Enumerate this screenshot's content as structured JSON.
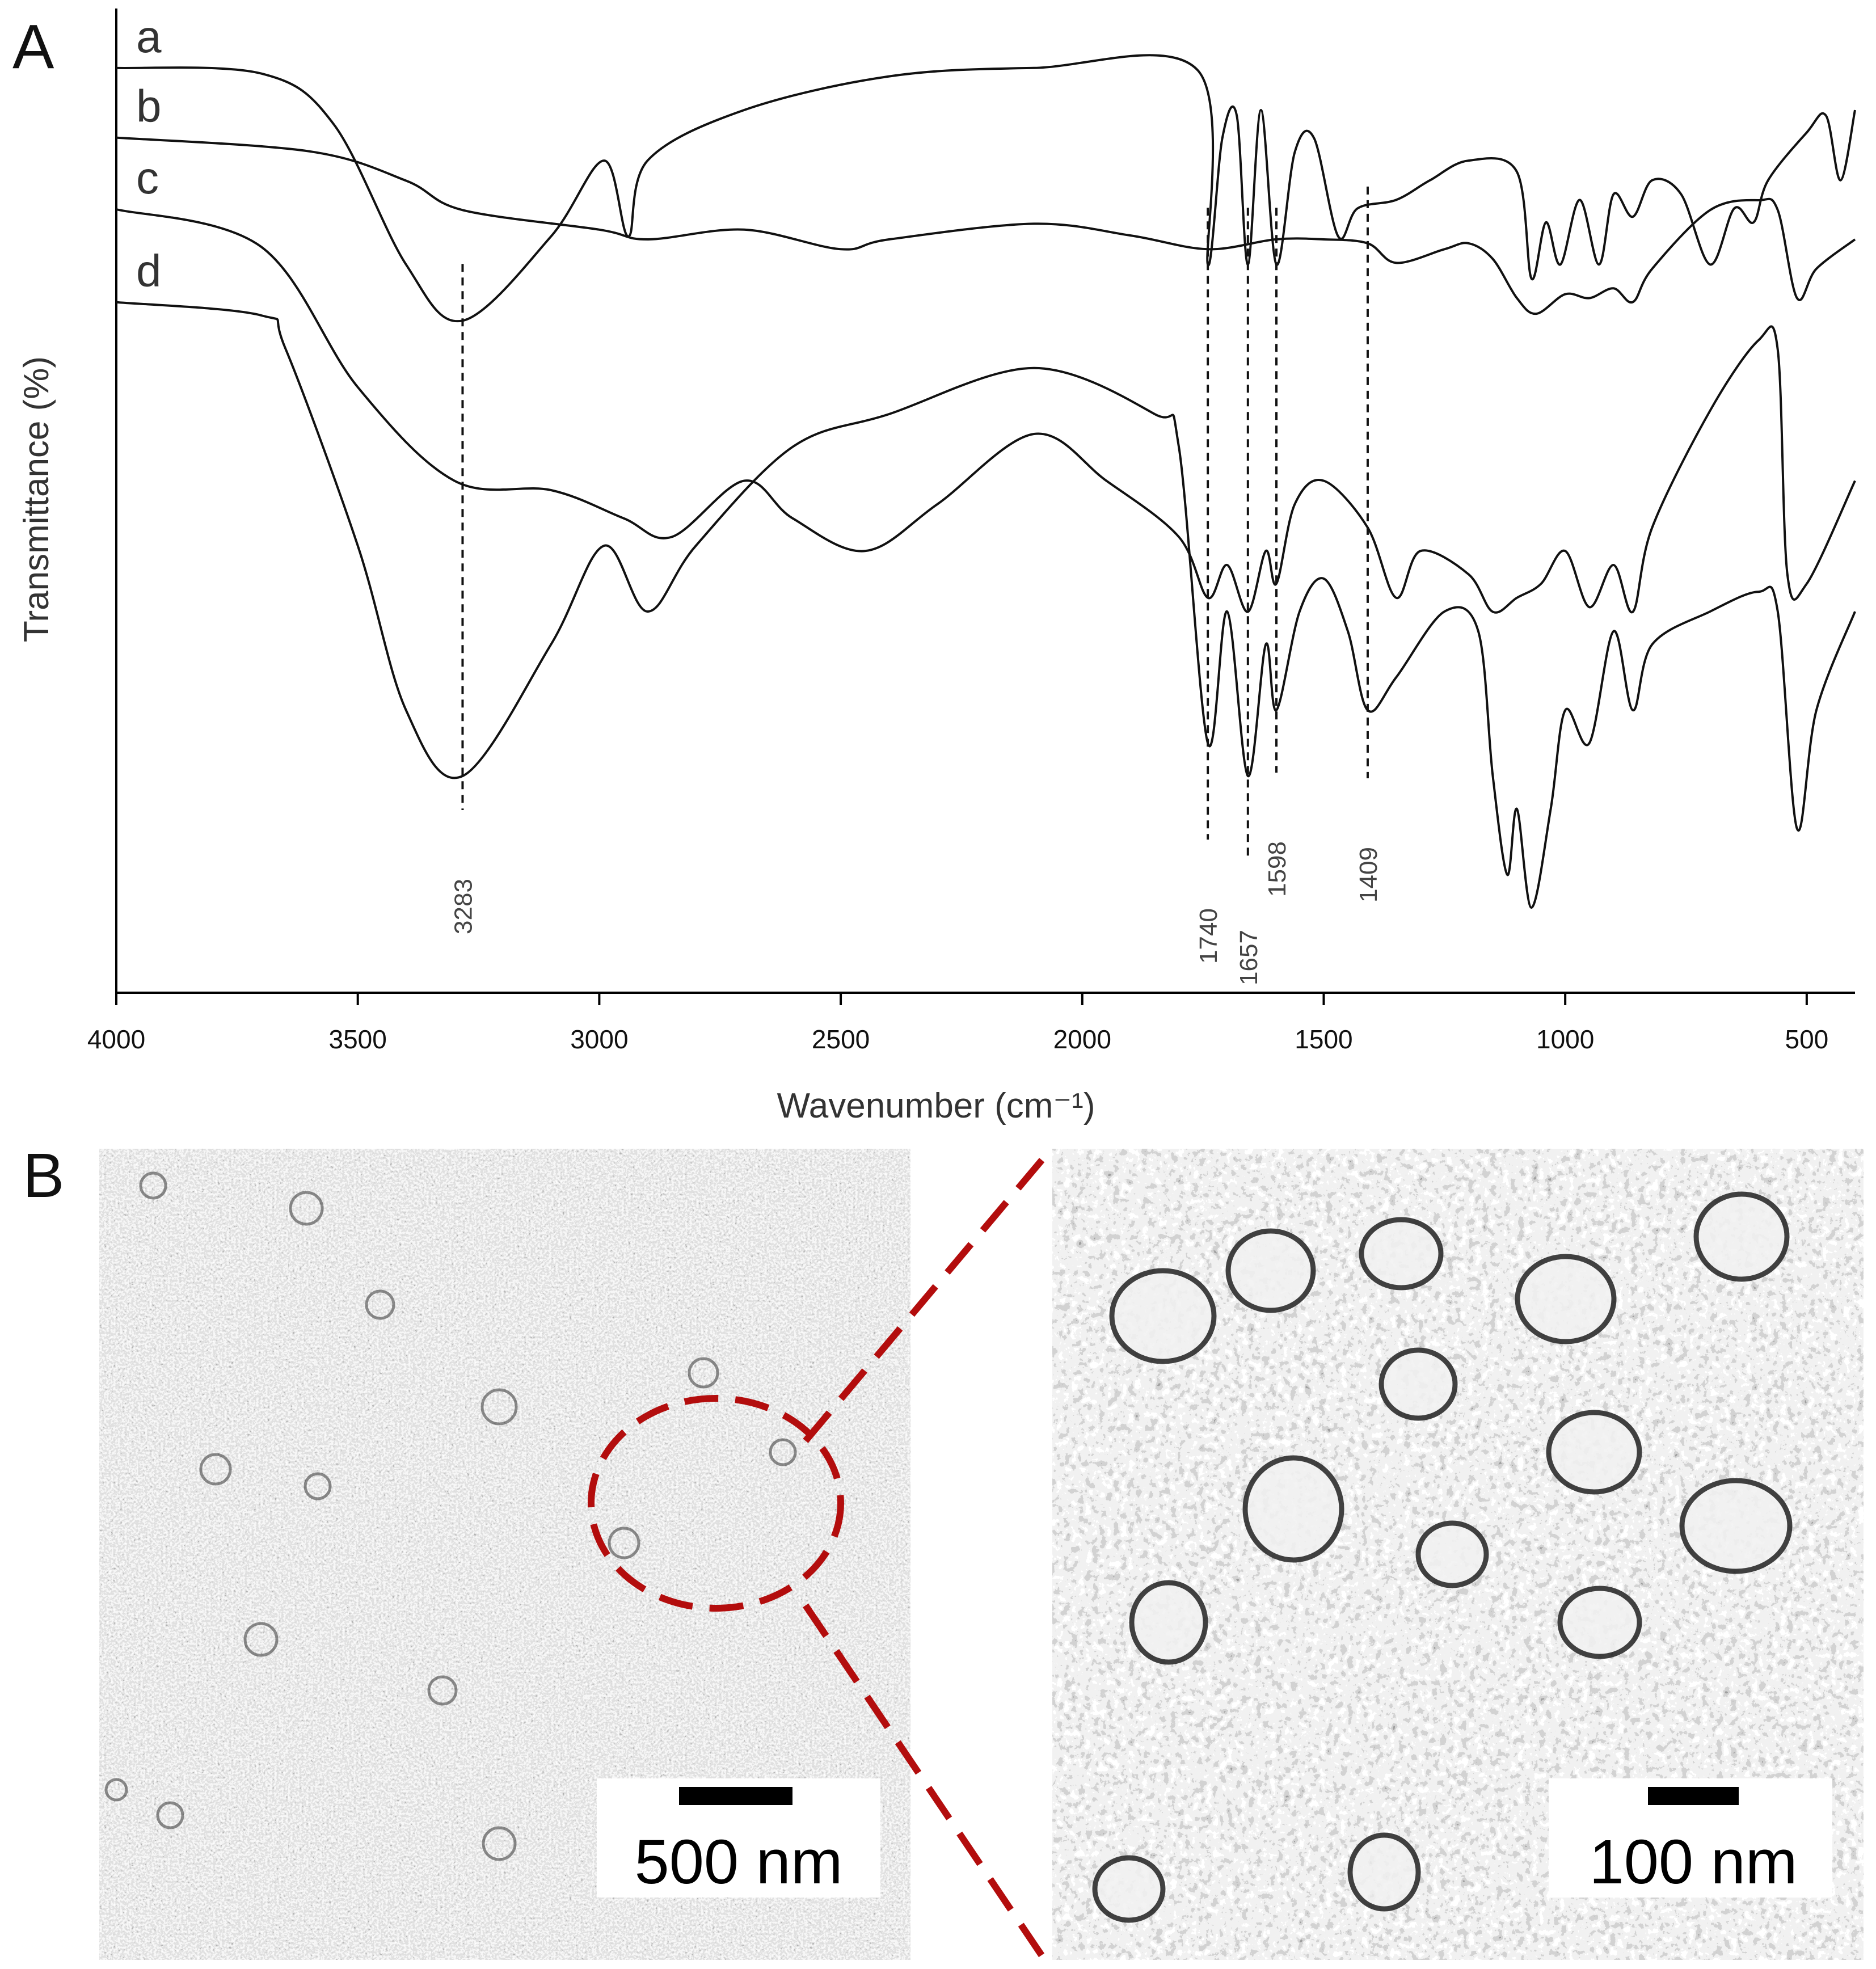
{
  "figure": {
    "panel_a": {
      "letter": "A"
    },
    "panel_b": {
      "letter": "B",
      "scale_bar_left": "500 nm",
      "scale_bar_right": "100 nm",
      "zoom_color": "#b30d0d"
    }
  },
  "chart_data": {
    "type": "line",
    "xlabel": "Wavenumber (cm⁻¹)",
    "ylabel": "Transmittance (%)",
    "xlim": [
      4000,
      400
    ],
    "x_reversed": true,
    "xticks": [
      4000,
      3500,
      3000,
      2500,
      2000,
      1500,
      1000,
      500
    ],
    "y_ticks_shown": false,
    "grid": false,
    "series": [
      {
        "name": "a",
        "points": [
          [
            4000,
            0.95
          ],
          [
            3700,
            0.93
          ],
          [
            3550,
            0.75
          ],
          [
            3400,
            0.25
          ],
          [
            3283,
            0.05
          ],
          [
            3100,
            0.35
          ],
          [
            2990,
            0.62
          ],
          [
            2940,
            0.35
          ],
          [
            2900,
            0.62
          ],
          [
            2700,
            0.8
          ],
          [
            2400,
            0.92
          ],
          [
            2100,
            0.95
          ],
          [
            1760,
            0.94
          ],
          [
            1740,
            0.25
          ],
          [
            1710,
            0.7
          ],
          [
            1680,
            0.78
          ],
          [
            1657,
            0.25
          ],
          [
            1630,
            0.8
          ],
          [
            1598,
            0.25
          ],
          [
            1560,
            0.65
          ],
          [
            1520,
            0.7
          ],
          [
            1470,
            0.35
          ],
          [
            1430,
            0.45
          ],
          [
            1350,
            0.48
          ],
          [
            1280,
            0.55
          ],
          [
            1200,
            0.62
          ],
          [
            1100,
            0.58
          ],
          [
            1070,
            0.2
          ],
          [
            1040,
            0.4
          ],
          [
            1010,
            0.25
          ],
          [
            970,
            0.48
          ],
          [
            930,
            0.25
          ],
          [
            900,
            0.5
          ],
          [
            860,
            0.42
          ],
          [
            820,
            0.55
          ],
          [
            760,
            0.5
          ],
          [
            700,
            0.25
          ],
          [
            650,
            0.45
          ],
          [
            610,
            0.4
          ],
          [
            580,
            0.55
          ],
          [
            500,
            0.72
          ],
          [
            460,
            0.78
          ],
          [
            430,
            0.55
          ],
          [
            400,
            0.8
          ]
        ]
      },
      {
        "name": "b",
        "points": [
          [
            4000,
            0.92
          ],
          [
            3600,
            0.85
          ],
          [
            3400,
            0.7
          ],
          [
            3283,
            0.55
          ],
          [
            3000,
            0.45
          ],
          [
            2900,
            0.4
          ],
          [
            2700,
            0.45
          ],
          [
            2500,
            0.35
          ],
          [
            2400,
            0.4
          ],
          [
            2100,
            0.48
          ],
          [
            1900,
            0.42
          ],
          [
            1740,
            0.35
          ],
          [
            1600,
            0.4
          ],
          [
            1500,
            0.4
          ],
          [
            1409,
            0.38
          ],
          [
            1350,
            0.28
          ],
          [
            1250,
            0.35
          ],
          [
            1200,
            0.38
          ],
          [
            1150,
            0.3
          ],
          [
            1100,
            0.1
          ],
          [
            1060,
            0.02
          ],
          [
            1000,
            0.12
          ],
          [
            950,
            0.1
          ],
          [
            900,
            0.15
          ],
          [
            860,
            0.08
          ],
          [
            820,
            0.25
          ],
          [
            700,
            0.55
          ],
          [
            600,
            0.6
          ],
          [
            560,
            0.55
          ],
          [
            520,
            0.1
          ],
          [
            480,
            0.25
          ],
          [
            400,
            0.4
          ]
        ]
      },
      {
        "name": "c",
        "points": [
          [
            4000,
            0.88
          ],
          [
            3700,
            0.8
          ],
          [
            3500,
            0.5
          ],
          [
            3300,
            0.3
          ],
          [
            3100,
            0.28
          ],
          [
            2950,
            0.22
          ],
          [
            2850,
            0.18
          ],
          [
            2700,
            0.3
          ],
          [
            2600,
            0.22
          ],
          [
            2450,
            0.15
          ],
          [
            2300,
            0.25
          ],
          [
            2100,
            0.4
          ],
          [
            1950,
            0.3
          ],
          [
            1800,
            0.18
          ],
          [
            1740,
            0.05
          ],
          [
            1700,
            0.12
          ],
          [
            1657,
            0.02
          ],
          [
            1620,
            0.15
          ],
          [
            1598,
            0.08
          ],
          [
            1560,
            0.25
          ],
          [
            1500,
            0.3
          ],
          [
            1409,
            0.2
          ],
          [
            1350,
            0.05
          ],
          [
            1300,
            0.15
          ],
          [
            1200,
            0.1
          ],
          [
            1150,
            0.02
          ],
          [
            1100,
            0.05
          ],
          [
            1050,
            0.08
          ],
          [
            1000,
            0.15
          ],
          [
            950,
            0.03
          ],
          [
            900,
            0.12
          ],
          [
            860,
            0.02
          ],
          [
            820,
            0.2
          ],
          [
            700,
            0.45
          ],
          [
            600,
            0.6
          ],
          [
            560,
            0.58
          ],
          [
            540,
            0.1
          ],
          [
            500,
            0.08
          ],
          [
            400,
            0.3
          ]
        ]
      },
      {
        "name": "d",
        "points": [
          [
            4000,
            0.92
          ],
          [
            3700,
            0.9
          ],
          [
            3650,
            0.85
          ],
          [
            3500,
            0.55
          ],
          [
            3400,
            0.3
          ],
          [
            3283,
            0.2
          ],
          [
            3100,
            0.4
          ],
          [
            2990,
            0.55
          ],
          [
            2900,
            0.45
          ],
          [
            2800,
            0.55
          ],
          [
            2600,
            0.7
          ],
          [
            2400,
            0.75
          ],
          [
            2100,
            0.82
          ],
          [
            1850,
            0.75
          ],
          [
            1800,
            0.7
          ],
          [
            1740,
            0.25
          ],
          [
            1700,
            0.45
          ],
          [
            1657,
            0.2
          ],
          [
            1620,
            0.4
          ],
          [
            1598,
            0.3
          ],
          [
            1550,
            0.45
          ],
          [
            1500,
            0.5
          ],
          [
            1450,
            0.42
          ],
          [
            1409,
            0.3
          ],
          [
            1350,
            0.35
          ],
          [
            1250,
            0.45
          ],
          [
            1180,
            0.42
          ],
          [
            1150,
            0.2
          ],
          [
            1120,
            0.05
          ],
          [
            1100,
            0.15
          ],
          [
            1070,
            0.0
          ],
          [
            1030,
            0.15
          ],
          [
            1000,
            0.3
          ],
          [
            950,
            0.25
          ],
          [
            900,
            0.42
          ],
          [
            860,
            0.3
          ],
          [
            820,
            0.4
          ],
          [
            700,
            0.45
          ],
          [
            600,
            0.48
          ],
          [
            560,
            0.45
          ],
          [
            520,
            0.12
          ],
          [
            480,
            0.3
          ],
          [
            400,
            0.45
          ]
        ]
      }
    ],
    "annotations": [
      "3283",
      "1740",
      "1657",
      "1598",
      "1409"
    ]
  }
}
